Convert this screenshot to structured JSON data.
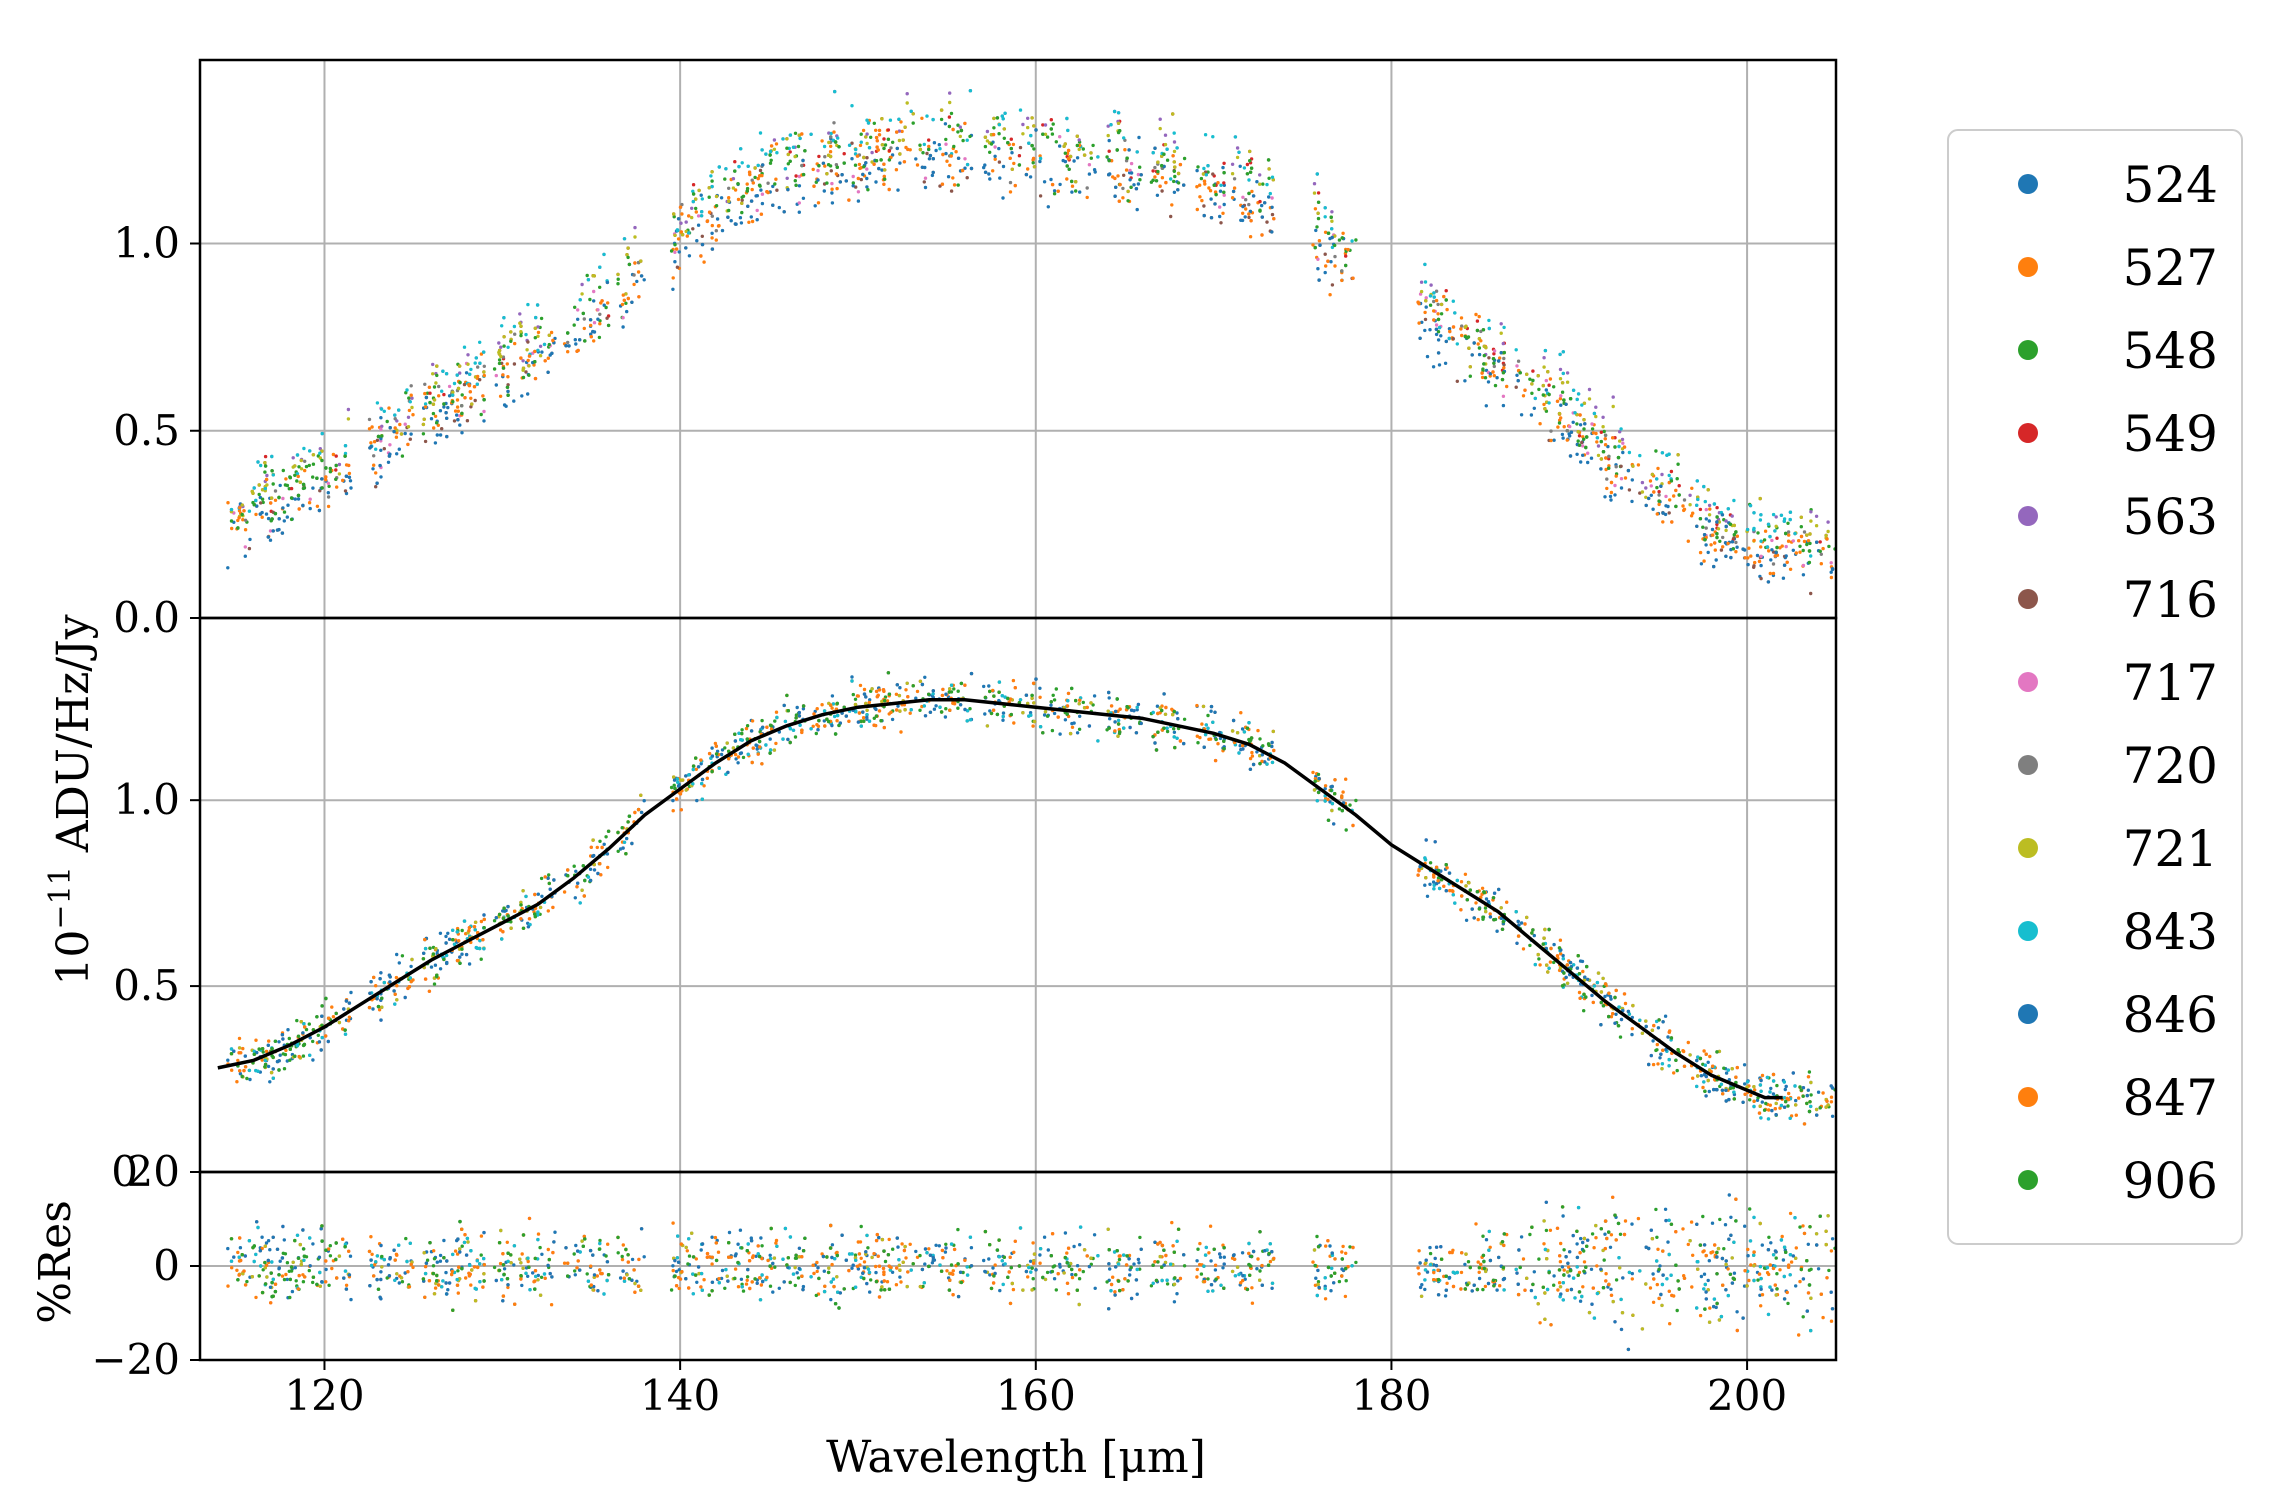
{
  "chart_data": {
    "type": "scatter",
    "xlabel": "Wavelength [μm]",
    "ylabel_main": "10",
    "ylabel_exp": "−11",
    "ylabel_rest": " ADU/Hz/Jy",
    "xlim": [
      113,
      205
    ],
    "x_ticks": [
      120,
      140,
      160,
      180,
      200
    ],
    "x_tick_labels": [
      "120",
      "140",
      "160",
      "180",
      "200"
    ],
    "grid": true,
    "legend_position": "right",
    "panels": [
      {
        "name": "top",
        "ylim": [
          0.0,
          1.49
        ],
        "y_ticks": [
          0.0,
          0.5,
          1.0
        ],
        "y_tick_labels": [
          "0.0",
          "0.5",
          "1.0"
        ]
      },
      {
        "name": "middle",
        "ylim": [
          0.0,
          1.49
        ],
        "y_ticks": [
          0.5,
          1.0
        ],
        "y_tick_labels": [
          "0.5",
          "1.0"
        ],
        "model_curve": {
          "x": [
            114,
            116,
            118,
            120,
            122,
            124,
            126,
            128,
            130,
            132,
            134,
            136,
            138,
            140,
            142,
            144,
            146,
            148,
            150,
            152,
            154,
            156,
            158,
            160,
            162,
            164,
            166,
            168,
            170,
            172,
            174,
            176,
            178,
            180,
            182,
            184,
            186,
            188,
            190,
            192,
            194,
            196,
            198,
            200,
            201,
            202
          ],
          "y": [
            0.28,
            0.3,
            0.34,
            0.39,
            0.45,
            0.51,
            0.57,
            0.62,
            0.67,
            0.72,
            0.79,
            0.87,
            0.96,
            1.03,
            1.1,
            1.16,
            1.2,
            1.23,
            1.25,
            1.26,
            1.27,
            1.27,
            1.26,
            1.25,
            1.24,
            1.23,
            1.22,
            1.2,
            1.18,
            1.15,
            1.1,
            1.03,
            0.96,
            0.88,
            0.82,
            0.76,
            0.7,
            0.62,
            0.54,
            0.46,
            0.39,
            0.32,
            0.26,
            0.22,
            0.2,
            0.2
          ]
        }
      },
      {
        "name": "residual",
        "ylabel": "%Res",
        "ylim": [
          -20,
          20
        ],
        "y_ticks": [
          -20,
          0,
          20
        ],
        "y_tick_labels": [
          "−20",
          "0",
          "20"
        ]
      }
    ],
    "stray_tick_label": "0",
    "series": [
      {
        "name": "524",
        "color": "#1f77b4"
      },
      {
        "name": "527",
        "color": "#ff7f0e"
      },
      {
        "name": "548",
        "color": "#2ca02c"
      },
      {
        "name": "549",
        "color": "#d62728"
      },
      {
        "name": "563",
        "color": "#9467bd"
      },
      {
        "name": "716",
        "color": "#8c564b"
      },
      {
        "name": "717",
        "color": "#e377c2"
      },
      {
        "name": "720",
        "color": "#7f7f7f"
      },
      {
        "name": "721",
        "color": "#bcbd22"
      },
      {
        "name": "843",
        "color": "#17becf"
      },
      {
        "name": "846",
        "color": "#1f77b4"
      },
      {
        "name": "847",
        "color": "#ff7f0e"
      },
      {
        "name": "906",
        "color": "#2ca02c"
      }
    ]
  }
}
